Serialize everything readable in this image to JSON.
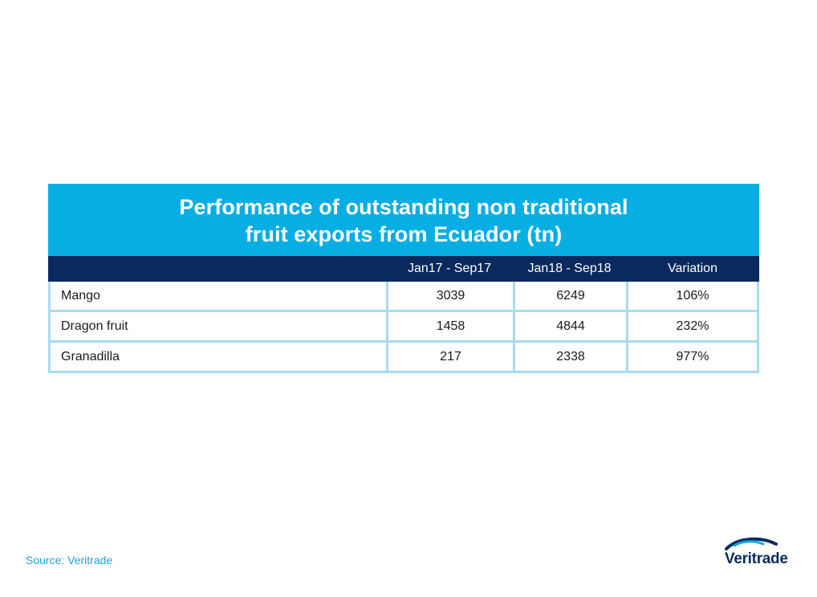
{
  "chart_data": {
    "type": "table",
    "title_lines": [
      "Performance of outstanding non traditional",
      "fruit exports from Ecuador (tn)"
    ],
    "columns": [
      "",
      "Jan17 - Sep17",
      "Jan18 - Sep18",
      "Variation"
    ],
    "rows": [
      {
        "label": "Mango",
        "jan17_sep17": "3039",
        "jan18_sep18": "6249",
        "variation": "106%"
      },
      {
        "label": "Dragon fruit",
        "jan17_sep17": "1458",
        "jan18_sep18": "4844",
        "variation": "232%"
      },
      {
        "label": "Granadilla",
        "jan17_sep17": "217",
        "jan18_sep18": "2338",
        "variation": "977%"
      }
    ]
  },
  "footer": {
    "source": "Source: Veritrade",
    "logo_text": "Veritrade"
  },
  "colors": {
    "title_bg": "#06aee3",
    "header_bg": "#0a2a5e",
    "border": "#a7dbf3",
    "source_text": "#1ea3d6"
  }
}
